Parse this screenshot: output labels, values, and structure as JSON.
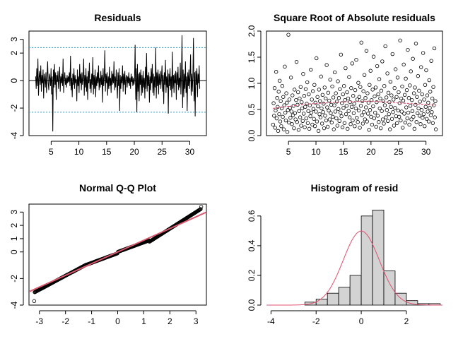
{
  "chart_data": [
    {
      "id": "residuals",
      "type": "line",
      "title": "Residuals",
      "xlabel": "",
      "ylabel": "",
      "xlim": [
        1,
        33
      ],
      "ylim": [
        -4,
        3.6
      ],
      "xticks": [
        5,
        10,
        15,
        20,
        25,
        30
      ],
      "yticks": [
        -4,
        -2,
        0,
        2,
        3
      ],
      "x_start": 2.2,
      "x_end": 31.8,
      "reference_lines": [
        {
          "y": 0,
          "style": "solid",
          "color": "#000000"
        },
        {
          "y": 2.4,
          "style": "dotted",
          "color": "#2a9fd6"
        },
        {
          "y": -2.3,
          "style": "dotted",
          "color": "#2a9fd6"
        }
      ],
      "line_color": "#000000",
      "series": [
        {
          "values": [
            0.3,
            -0.6,
            0.9,
            -0.4,
            1.6,
            -1.1,
            0.2,
            0.7,
            -0.3,
            1.1,
            -0.8,
            0.4,
            -0.2,
            0.8,
            -1.3,
            0.5,
            0.1,
            -0.5,
            0.6,
            -0.9,
            0.3,
            1.4,
            -0.2,
            -0.7,
            0.5,
            0.2,
            -0.4,
            0.9,
            -1.0,
            0.3,
            -3.7,
            0.8,
            -0.5,
            1.2,
            -0.3,
            0.6,
            -1.4,
            0.4,
            -0.1,
            0.7,
            -0.6,
            0.2,
            1.0,
            -0.8,
            0.3,
            -0.2,
            0.5,
            -0.4,
            1.6,
            -0.9,
            0.1,
            0.6,
            -0.3,
            0.2,
            -0.5,
            0.4,
            -0.2,
            0.3,
            -0.1,
            0.6,
            -0.4,
            1.8,
            -0.7,
            0.2,
            -1.2,
            0.5,
            -0.3,
            0.9,
            -0.6,
            0.4,
            -0.2,
            0.1,
            -1.5,
            0.8,
            -0.4,
            0.3,
            -0.9,
            1.2,
            -0.2,
            0.5,
            -0.7,
            0.6,
            -0.3,
            0.2,
            1.6,
            -1.1,
            0.4,
            -0.5,
            0.9,
            -0.8,
            0.3,
            -1.4,
            0.7,
            -0.2,
            1.3,
            -0.6,
            0.1,
            -0.9,
            0.5,
            -0.3,
            1.7,
            -1.0,
            0.4,
            -0.6,
            0.8,
            -1.2,
            0.3,
            -0.4,
            0.6,
            -0.2,
            1.1,
            -0.7,
            0.2,
            -0.5,
            0.7,
            -0.3,
            0.4,
            -1.6,
            0.9,
            -0.4,
            0.3,
            2.2,
            -0.8,
            0.5,
            -0.2,
            0.6,
            -1.1,
            0.3,
            -0.6,
            1.0,
            -0.4,
            0.2,
            -0.9,
            0.7,
            -0.3,
            0.5,
            -0.2,
            1.4,
            -0.7,
            0.3,
            -0.5,
            0.8,
            -0.2,
            -1.3,
            0.6,
            -0.4,
            0.9,
            -2.2,
            0.4,
            -0.6,
            0.3,
            -0.2,
            1.1,
            -0.8,
            0.5,
            -0.3,
            0.7,
            -1.0,
            0.2,
            0.4,
            -0.5,
            0.3,
            -0.2,
            0.6,
            -0.4,
            0.2,
            -0.6,
            0.5,
            -0.1,
            0.3,
            -0.4,
            0.2,
            -0.3,
            0.1,
            2.6,
            -1.4,
            0.9,
            -2.3,
            1.2,
            -0.8,
            0.5,
            -1.5,
            0.6,
            -0.3,
            0.8,
            -1.1,
            0.4,
            -0.9,
            0.7,
            -0.5,
            0.2,
            -1.3,
            1.0,
            -0.6,
            2.0,
            -0.8,
            0.4,
            -0.4,
            0.6,
            -1.6,
            0.3,
            -0.7,
            0.9,
            -0.2,
            1.2,
            -0.9,
            0.5,
            -1.1,
            0.3,
            -0.5,
            2.4,
            -1.3,
            0.6,
            -0.4,
            0.8,
            -1.0,
            0.5,
            -0.3,
            0.7,
            -0.6,
            0.2,
            1.1,
            -0.8,
            0.4,
            -1.7,
            0.6,
            -0.3,
            1.5,
            -0.9,
            0.3,
            -0.5,
            0.8,
            -2.4,
            0.5,
            -0.4,
            0.9,
            -0.7,
            0.3,
            -1.2,
            2.1,
            -0.6,
            0.4,
            -0.9,
            0.5,
            -0.2,
            0.7,
            -1.4,
            0.6,
            -0.3,
            1.0,
            -0.7,
            0.2,
            -0.5,
            1.3,
            -1.0,
            0.4,
            3.3,
            -2.0,
            0.8,
            -1.2,
            0.5,
            -0.6,
            1.4,
            -0.9,
            0.3,
            -2.2,
            0.6,
            -0.4,
            0.8,
            -0.6,
            0.3,
            1.9,
            -1.1,
            0.5,
            -0.8,
            0.4,
            3.1,
            -1.5,
            0.6,
            -2.6,
            0.7,
            -0.3,
            0.9,
            -1.2,
            0.5,
            -0.2,
            1.1,
            -0.6
          ]
        }
      ]
    },
    {
      "id": "sqrt-abs",
      "type": "scatter",
      "title": "Square Root of Absolute residuals",
      "xlabel": "",
      "ylabel": "",
      "xlim": [
        1,
        33
      ],
      "ylim": [
        0,
        2
      ],
      "xticks": [
        5,
        10,
        15,
        20,
        25,
        30
      ],
      "yticks": [
        0.0,
        0.5,
        1.0,
        1.5,
        2.0
      ],
      "ytick_labels": [
        "0.0",
        "0.5",
        "1.0",
        "1.5",
        "2.0"
      ],
      "x_start": 2.2,
      "x_end": 31.8,
      "point_color": "#000000",
      "smooth_color": "#e05070",
      "smooth": [
        [
          2.2,
          0.52
        ],
        [
          5,
          0.56
        ],
        [
          8,
          0.6
        ],
        [
          11,
          0.62
        ],
        [
          14,
          0.64
        ],
        [
          17,
          0.65
        ],
        [
          20,
          0.66
        ],
        [
          23,
          0.64
        ],
        [
          26,
          0.62
        ],
        [
          29,
          0.6
        ],
        [
          31.8,
          0.58
        ]
      ],
      "values": [
        0.21,
        0.62,
        0.38,
        0.91,
        0.15,
        0.48,
        1.22,
        0.33,
        0.72,
        0.55,
        0.09,
        0.84,
        0.41,
        1.05,
        0.27,
        0.66,
        0.18,
        0.52,
        0.95,
        0.36,
        0.74,
        0.12,
        0.58,
        1.32,
        0.44,
        0.29,
        0.81,
        0.63,
        0.07,
        0.49,
        1.93,
        0.25,
        0.69,
        0.53,
        0.34,
        1.11,
        0.46,
        0.22,
        0.77,
        0.39,
        0.57,
        0.14,
        0.88,
        0.43,
        0.31,
        0.68,
        1.41,
        0.26,
        0.59,
        0.83,
        0.11,
        0.47,
        0.71,
        0.35,
        0.93,
        0.19,
        0.64,
        0.52,
        0.28,
        1.18,
        0.42,
        0.76,
        0.16,
        0.55,
        0.89,
        0.33,
        0.61,
        1.02,
        0.24,
        0.47,
        0.79,
        0.13,
        0.58,
        0.37,
        1.26,
        0.44,
        0.69,
        0.21,
        0.85,
        0.51,
        0.32,
        0.97,
        0.18,
        0.63,
        0.46,
        1.48,
        0.27,
        0.74,
        0.56,
        0.09,
        0.88,
        0.41,
        0.66,
        0.35,
        1.13,
        0.52,
        0.23,
        0.78,
        0.45,
        0.61,
        0.14,
        0.92,
        0.38,
        0.71,
        0.29,
        1.35,
        0.54,
        0.17,
        0.82,
        0.48,
        0.67,
        0.31,
        1.07,
        0.43,
        0.59,
        0.25,
        0.94,
        0.36,
        0.73,
        0.12,
        0.58,
        1.21,
        0.46,
        0.81,
        0.33,
        0.65,
        0.19,
        1.04,
        0.51,
        0.72,
        0.28,
        0.89,
        0.44,
        1.55,
        0.37,
        0.62,
        0.16,
        0.79,
        0.53,
        0.95,
        0.24,
        0.68,
        1.29,
        0.41,
        0.57,
        0.83,
        0.13,
        0.71,
        0.47,
        1.12,
        0.35,
        0.64,
        0.22,
        0.91,
        0.55,
        1.38,
        0.29,
        0.76,
        0.43,
        0.61,
        0.18,
        0.87,
        0.52,
        1.45,
        0.34,
        0.69,
        0.26,
        1.01,
        0.48,
        0.74,
        0.15,
        0.93,
        0.57,
        1.78,
        0.39,
        0.66,
        0.23,
        0.85,
        0.45,
        1.16,
        0.31,
        0.72,
        0.54,
        1.62,
        0.27,
        0.81,
        0.42,
        0.63,
        0.11,
        0.97,
        0.49,
        1.24,
        0.36,
        0.68,
        0.21,
        0.88,
        0.56,
        1.51,
        0.33,
        0.75,
        0.44,
        0.92,
        0.17,
        0.64,
        1.33,
        0.38,
        0.79,
        0.26,
        1.08,
        0.52,
        0.71,
        0.14,
        0.86,
        0.47,
        1.42,
        0.31,
        0.66,
        0.23,
        0.95,
        0.58,
        1.71,
        0.35,
        0.73,
        0.49,
        1.19,
        0.28,
        0.82,
        0.41,
        0.64,
        0.12,
        1.03,
        0.55,
        0.77,
        0.32,
        1.56,
        0.45,
        0.69,
        0.19,
        0.91,
        0.53,
        1.27,
        0.37,
        0.74,
        0.24,
        1.11,
        0.48,
        0.83,
        0.36,
        0.62,
        1.82,
        0.29,
        0.71,
        0.46,
        0.94,
        0.15,
        0.67,
        1.36,
        0.42,
        0.78,
        0.25,
        1.09,
        0.54,
        0.87,
        0.33,
        1.64,
        0.44,
        0.72,
        0.21,
        0.96,
        0.57,
        1.23,
        0.31,
        0.68,
        0.47,
        1.47,
        0.36,
        0.81,
        0.13,
        0.92,
        0.59,
        1.76,
        0.26,
        0.74,
        0.43,
        1.14,
        0.52,
        0.86,
        0.38,
        0.65,
        0.22,
        1.31,
        0.49,
        0.79,
        0.34,
        1.58,
        0.41,
        0.69,
        0.18,
        0.97,
        0.55,
        1.25,
        0.32,
        0.77,
        0.46,
        0.63,
        0.27,
        1.06,
        0.53,
        0.84,
        0.39,
        1.43,
        0.45,
        0.71,
        0.24,
        0.93,
        0.58,
        1.67,
        0.35,
        0.66,
        0.12
      ]
    },
    {
      "id": "qqplot",
      "type": "scatter",
      "title": "Normal Q-Q Plot",
      "xlabel": "",
      "ylabel": "",
      "xlim": [
        -3.4,
        3.4
      ],
      "ylim": [
        -4,
        3.6
      ],
      "xticks": [
        -3,
        -2,
        -1,
        0,
        1,
        2,
        3
      ],
      "yticks": [
        -4,
        -2,
        0,
        1,
        2,
        3
      ],
      "point_color": "#000000",
      "line_color": "#d9596e",
      "qq_line": {
        "slope": 0.88,
        "intercept": 0.0
      },
      "n_points": 340,
      "theoretical_range": [
        -3.2,
        3.2
      ],
      "sample_tail_low": -3.7,
      "sample_tail_high": 3.4
    },
    {
      "id": "histogram",
      "type": "bar",
      "title": "Histogram of resid",
      "xlabel": "",
      "ylabel": "",
      "xlim": [
        -4.2,
        3.6
      ],
      "ylim": [
        0,
        0.68
      ],
      "xticks": [
        -4,
        -2,
        0,
        2
      ],
      "yticks": [
        0.0,
        0.2,
        0.4,
        0.6
      ],
      "ytick_labels": [
        "0.0",
        "0.2",
        "0.4",
        "0.6"
      ],
      "bar_fill": "#d3d3d3",
      "bar_stroke": "#000000",
      "density_color": "#e05070",
      "bin_edges": [
        -2.5,
        -2.0,
        -1.5,
        -1.0,
        -0.5,
        0.0,
        0.5,
        1.0,
        1.5,
        2.0,
        2.5,
        3.0,
        3.5
      ],
      "values": [
        0.02,
        0.04,
        0.08,
        0.12,
        0.2,
        0.6,
        0.64,
        0.23,
        0.08,
        0.03,
        0.01,
        0.01
      ],
      "density": {
        "mean": 0.0,
        "sd": 0.8
      }
    }
  ]
}
